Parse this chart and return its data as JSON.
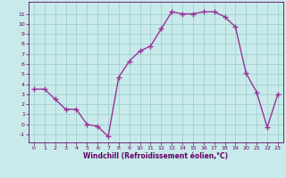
{
  "x": [
    0,
    1,
    2,
    3,
    4,
    5,
    6,
    7,
    8,
    9,
    10,
    11,
    12,
    13,
    14,
    15,
    16,
    17,
    18,
    19,
    20,
    21,
    22,
    23
  ],
  "y": [
    3.5,
    3.5,
    2.5,
    1.5,
    1.5,
    0.0,
    -0.2,
    -1.2,
    4.7,
    6.3,
    7.3,
    7.8,
    9.5,
    11.2,
    11.0,
    11.0,
    11.2,
    11.2,
    10.7,
    9.7,
    5.1,
    3.2,
    -0.3,
    3.0
  ],
  "xlabel": "Windchill (Refroidissement éolien,°C)",
  "xlim": [
    -0.5,
    23.5
  ],
  "ylim": [
    -1.8,
    12.2
  ],
  "yticks": [
    -1,
    0,
    1,
    2,
    3,
    4,
    5,
    6,
    7,
    8,
    9,
    10,
    11
  ],
  "xticks": [
    0,
    1,
    2,
    3,
    4,
    5,
    6,
    7,
    8,
    9,
    10,
    11,
    12,
    13,
    14,
    15,
    16,
    17,
    18,
    19,
    20,
    21,
    22,
    23
  ],
  "line_color": "#993399",
  "marker": "+",
  "bg_color": "#c8eaea",
  "grid_color": "#99cccc",
  "spine_color": "#660066",
  "tick_color": "#660066",
  "label_color": "#660066",
  "linewidth": 1.0,
  "markersize": 4,
  "markeredgewidth": 1.0
}
